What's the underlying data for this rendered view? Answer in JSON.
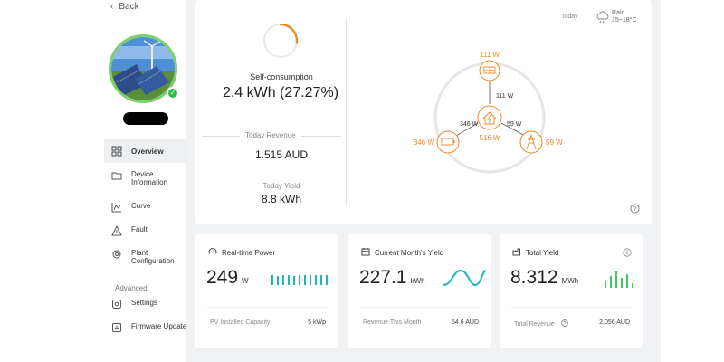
{
  "sidebar": {
    "back_label": "Back",
    "items": [
      {
        "label": "Overview",
        "icon": "grid-icon",
        "active": true
      },
      {
        "label": "Device Information",
        "icon": "folder-icon"
      },
      {
        "label": "Curve",
        "icon": "chart-icon"
      },
      {
        "label": "Fault",
        "icon": "warning-icon"
      },
      {
        "label": "Plant Configuration",
        "icon": "gear-icon"
      }
    ],
    "advanced_label": "Advanced",
    "advanced_items": [
      {
        "label": "Settings",
        "icon": "settings-icon"
      },
      {
        "label": "Firmware Update",
        "icon": "update-icon"
      }
    ]
  },
  "overview": {
    "self_consumption_label": "Self-consumption",
    "self_consumption_value": "2.4 kWh (27.27%)",
    "self_consumption_fraction": 0.2727,
    "today_revenue_label": "Today Revenue",
    "today_revenue_value": "1.515 AUD",
    "today_yield_label": "Today Yield",
    "today_yield_value": "8.8 kWh"
  },
  "weather": {
    "today_label": "Today",
    "condition": "Rain",
    "temperature": "15~18°C"
  },
  "energy_flow": {
    "pv_label": "111 W",
    "pv_to_home": "111 W",
    "battery_label": "346 W",
    "battery_to_home": "346 W",
    "grid_label": "59 W",
    "grid_to_home": "59 W",
    "home_label": "516 W"
  },
  "cards": {
    "realtime": {
      "title": "Real-time Power",
      "value": "249",
      "unit": "W",
      "foot_label": "PV Installed Capacity",
      "foot_value": "5 kWp"
    },
    "month": {
      "title": "Current Month's Yield",
      "value": "227.1",
      "unit": "kWh",
      "foot_label": "Revenue This Month",
      "foot_value": "54.6 AUD"
    },
    "total": {
      "title": "Total Yield",
      "value": "8.312",
      "unit": "MWh",
      "foot_label": "Total Revenue",
      "foot_value": "2,056 AUD"
    }
  },
  "colors": {
    "accent": "#f08a24",
    "teal": "#1fb5c8",
    "green": "#3cc85a",
    "success": "#2db84c"
  }
}
